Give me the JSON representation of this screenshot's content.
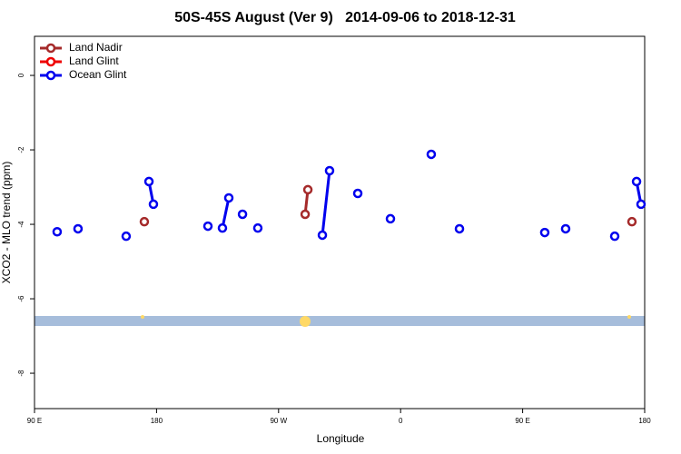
{
  "chart_data": {
    "type": "scatter",
    "title": "50S-45S August (Ver 9)   2014-09-06 to 2018-12-31",
    "x_label": "Longitude",
    "y_label": "XCO2 - MLO trend (ppm)",
    "xlim": [
      90,
      540
    ],
    "ylim": [
      -8.95,
      1.05
    ],
    "xticks": [
      {
        "value": 90,
        "label": "90 E"
      },
      180,
      {
        "value": 270,
        "label": "90 W"
      },
      {
        "value": 360,
        "label": "0"
      },
      {
        "value": 450,
        "label": "90 E"
      },
      {
        "value": 540,
        "label": "180"
      }
    ],
    "yticks": [
      0,
      -2,
      -4,
      -6,
      -8
    ],
    "legend": "top-left",
    "series": [
      {
        "name": "Land Nadir",
        "color": "#a52a2a",
        "x": [
          171.0,
          null,
          289.6,
          291.6,
          null,
          530.6
        ],
        "values": [
          -3.93,
          null,
          -3.73,
          -3.07,
          null,
          -3.93
        ]
      },
      {
        "name": "Land Glint",
        "color": "#ee0000",
        "x": [],
        "values": []
      },
      {
        "name": "Ocean Glint",
        "color": "#0000ee",
        "x": [
          106.7,
          null,
          122.1,
          null,
          157.6,
          null,
          174.4,
          177.7,
          null,
          217.9,
          null,
          228.6,
          233.3,
          null,
          243.4,
          null,
          254.7,
          null,
          302.3,
          307.6,
          null,
          328.4,
          null,
          352.5,
          null,
          382.6,
          null,
          403.4,
          null,
          466.3,
          null,
          481.7,
          null,
          517.9,
          null,
          534.0,
          537.3
        ],
        "values": [
          -4.2,
          null,
          -4.12,
          null,
          -4.32,
          null,
          -2.85,
          -3.46,
          null,
          -4.05,
          null,
          -4.1,
          -3.29,
          null,
          -3.73,
          null,
          -4.1,
          null,
          -4.29,
          -2.56,
          null,
          -3.17,
          null,
          -3.85,
          null,
          -2.12,
          null,
          -4.12,
          null,
          -4.22,
          null,
          -4.12,
          null,
          -4.32,
          null,
          -2.85,
          -3.46
        ]
      }
    ]
  }
}
